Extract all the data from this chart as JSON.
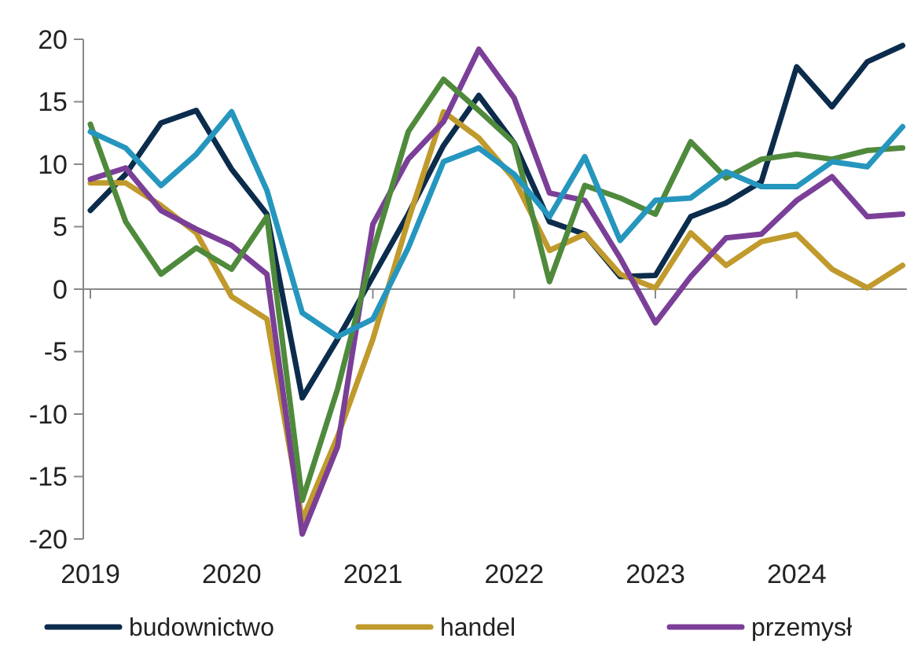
{
  "chart_data": {
    "type": "line",
    "x": [
      2019,
      2019.25,
      2019.5,
      2019.75,
      2020,
      2020.25,
      2020.5,
      2020.75,
      2021,
      2021.25,
      2021.5,
      2021.75,
      2022,
      2022.25,
      2022.5,
      2022.75,
      2023,
      2023.25,
      2023.5,
      2023.75,
      2024,
      2024.25,
      2024.5,
      2024.75
    ],
    "series": [
      {
        "name": "budownictwo",
        "color": "#0c2c4c",
        "values": [
          6.3,
          9.2,
          13.3,
          14.3,
          9.6,
          6.0,
          -8.7,
          -4.0,
          1.0,
          6.0,
          11.5,
          15.5,
          11.7,
          5.4,
          4.4,
          1.0,
          1.1,
          5.8,
          6.9,
          8.6,
          17.8,
          14.6,
          18.2,
          19.5
        ]
      },
      {
        "name": "handel",
        "color": "#c09a2c",
        "values": [
          8.5,
          8.5,
          6.7,
          4.5,
          -0.6,
          -2.4,
          -18.5,
          -11.8,
          -4.0,
          5.5,
          14.2,
          12.1,
          8.8,
          3.1,
          4.4,
          1.2,
          0.1,
          4.5,
          1.9,
          3.8,
          4.4,
          1.6,
          0.1,
          1.9
        ]
      },
      {
        "name": "przemysł",
        "color": "#7b3f98",
        "values": [
          8.8,
          9.7,
          6.3,
          4.8,
          3.5,
          1.2,
          -19.6,
          -12.6,
          5.2,
          10.4,
          13.4,
          19.2,
          15.3,
          7.7,
          7.1,
          2.5,
          -2.7,
          1.0,
          4.1,
          4.4,
          7.1,
          9.0,
          5.8,
          6.0
        ]
      },
      {
        "color": "#4f8a3c",
        "values": [
          13.2,
          5.4,
          1.2,
          3.3,
          1.6,
          5.8,
          -16.9,
          -8.0,
          3.0,
          12.6,
          16.8,
          14.3,
          11.7,
          0.6,
          8.3,
          7.3,
          6.0,
          11.8,
          8.9,
          10.4,
          10.8,
          10.4,
          11.1,
          11.3
        ]
      },
      {
        "color": "#2596be",
        "values": [
          12.6,
          11.3,
          8.3,
          10.8,
          14.2,
          7.9,
          -1.9,
          -3.8,
          -2.4,
          3.3,
          10.2,
          11.3,
          9.2,
          5.8,
          10.6,
          3.9,
          7.1,
          7.3,
          9.4,
          8.2,
          8.2,
          10.2,
          9.8,
          13.0
        ]
      }
    ],
    "xlim": [
      2018.95,
      2024.78
    ],
    "xticks": [
      2019,
      2020,
      2021,
      2022,
      2023,
      2024
    ],
    "ylim": [
      -20,
      20
    ],
    "yticks": [
      -20,
      -15,
      -10,
      -5,
      0,
      5,
      10,
      15,
      20
    ],
    "legend": "bottom",
    "marker": "none",
    "line_style": "solid"
  }
}
